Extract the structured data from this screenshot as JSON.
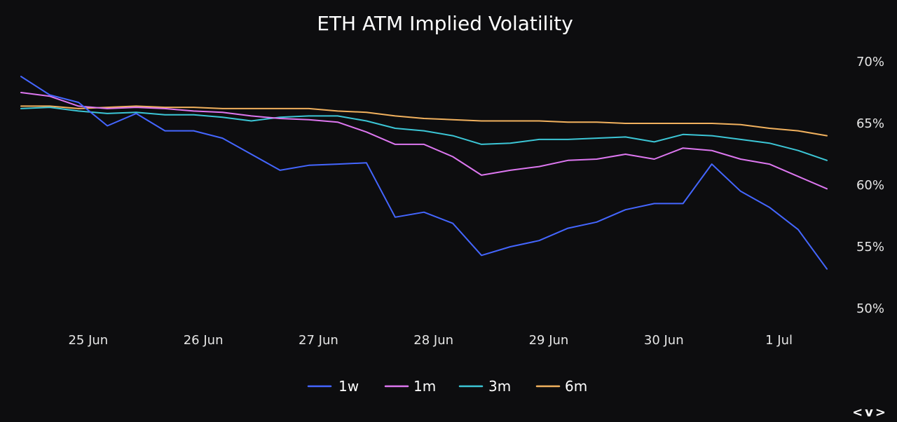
{
  "chart_data": {
    "type": "line",
    "title": "ETH ATM Implied Volatility",
    "xlabel": "",
    "ylabel": "",
    "ylim": [
      50,
      70
    ],
    "y_ticks": [
      "50%",
      "55%",
      "60%",
      "65%",
      "70%"
    ],
    "y_tick_values": [
      50,
      55,
      60,
      65,
      70
    ],
    "x_ticks": [
      "25 Jun",
      "26 Jun",
      "27 Jun",
      "28 Jun",
      "29 Jun",
      "30 Jun",
      "1 Jul"
    ],
    "x_tick_values": [
      "2024-06-25",
      "2024-06-26",
      "2024-06-27",
      "2024-06-28",
      "2024-06-29",
      "2024-06-30",
      "2024-07-01"
    ],
    "x": [
      "2024-06-24 10:00",
      "2024-06-24 16:00",
      "2024-06-24 22:00",
      "2024-06-25 04:00",
      "2024-06-25 10:00",
      "2024-06-25 16:00",
      "2024-06-25 22:00",
      "2024-06-26 04:00",
      "2024-06-26 10:00",
      "2024-06-26 16:00",
      "2024-06-26 22:00",
      "2024-06-27 04:00",
      "2024-06-27 10:00",
      "2024-06-27 16:00",
      "2024-06-27 22:00",
      "2024-06-28 04:00",
      "2024-06-28 10:00",
      "2024-06-28 16:00",
      "2024-06-28 22:00",
      "2024-06-29 04:00",
      "2024-06-29 10:00",
      "2024-06-29 16:00",
      "2024-06-29 22:00",
      "2024-06-30 04:00",
      "2024-06-30 10:00",
      "2024-06-30 16:00",
      "2024-06-30 22:00",
      "2024-07-01 04:00",
      "2024-07-01 10:00"
    ],
    "series": [
      {
        "name": "1w",
        "color": "#4466ff",
        "values": [
          68.8,
          67.3,
          66.7,
          64.8,
          65.8,
          64.4,
          64.4,
          63.8,
          62.5,
          61.2,
          61.6,
          61.7,
          61.8,
          57.4,
          57.8,
          56.9,
          54.3,
          55.0,
          55.5,
          56.5,
          57.0,
          58.0,
          58.5,
          58.5,
          61.7,
          59.5,
          58.2,
          56.4,
          53.2
        ]
      },
      {
        "name": "1m",
        "color": "#dd77f0",
        "values": [
          67.5,
          67.2,
          66.4,
          66.2,
          66.3,
          66.2,
          66.0,
          65.9,
          65.6,
          65.4,
          65.3,
          65.1,
          64.3,
          63.3,
          63.3,
          62.3,
          60.8,
          61.2,
          61.5,
          62.0,
          62.1,
          62.5,
          62.1,
          63.0,
          62.8,
          62.1,
          61.7,
          60.7,
          59.7
        ]
      },
      {
        "name": "3m",
        "color": "#3cc6d6",
        "values": [
          66.2,
          66.3,
          66.0,
          65.8,
          65.9,
          65.7,
          65.7,
          65.5,
          65.2,
          65.5,
          65.6,
          65.6,
          65.2,
          64.6,
          64.4,
          64.0,
          63.3,
          63.4,
          63.7,
          63.7,
          63.8,
          63.9,
          63.5,
          64.1,
          64.0,
          63.7,
          63.4,
          62.8,
          62.0
        ]
      },
      {
        "name": "6m",
        "color": "#f1b15e",
        "values": [
          66.4,
          66.4,
          66.2,
          66.3,
          66.4,
          66.3,
          66.3,
          66.2,
          66.2,
          66.2,
          66.2,
          66.0,
          65.9,
          65.6,
          65.4,
          65.3,
          65.2,
          65.2,
          65.2,
          65.1,
          65.1,
          65.0,
          65.0,
          65.0,
          65.0,
          64.9,
          64.6,
          64.4,
          64.0
        ]
      }
    ],
    "legend_position": "bottom",
    "grid": false
  },
  "brand_mark": "<v>"
}
